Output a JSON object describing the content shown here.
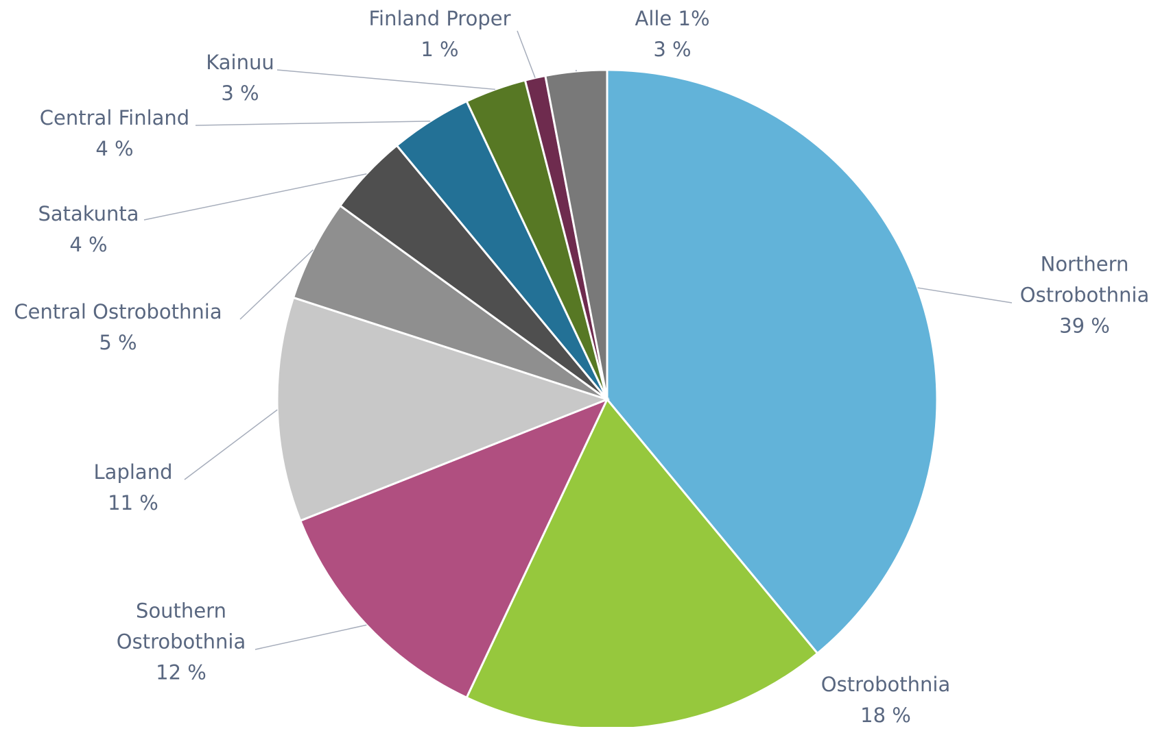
{
  "chart_data": {
    "type": "pie",
    "categories": [
      "Northern Ostrobothnia",
      "Ostrobothnia",
      "Southern Ostrobothnia",
      "Lapland",
      "Central Ostrobothnia",
      "Satakunta",
      "Central Finland",
      "Kainuu",
      "Finland Proper",
      "Alle 1%"
    ],
    "values": [
      39,
      18,
      12,
      11,
      5,
      4,
      4,
      3,
      1,
      3
    ],
    "value_labels": [
      "39 %",
      "18 %",
      "12 %",
      "11 %",
      "5 %",
      "4 %",
      "4 %",
      "3 %",
      "1 %",
      "3 %"
    ],
    "colors": [
      "#62b3d9",
      "#96c83d",
      "#b04f80",
      "#c8c8c8",
      "#8f8f8f",
      "#4f4f4f",
      "#237196",
      "#577824",
      "#6e2b4e",
      "#797979"
    ]
  }
}
